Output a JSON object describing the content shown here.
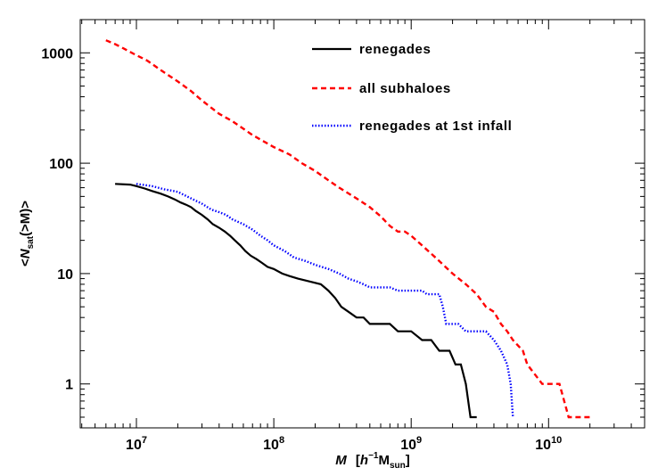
{
  "chart_data": {
    "type": "line",
    "title": "",
    "xlabel": {
      "symbol": "M",
      "unit_prefix": "[",
      "unit_h": "h",
      "unit_exp": "−1",
      "unit_M": "M",
      "unit_sub": "sun",
      "unit_suffix": "]"
    },
    "ylabel": {
      "open": "<",
      "symbol": "N",
      "sub": "sat",
      "arg": "(>M)",
      "close": ">"
    },
    "xscale": "log",
    "yscale": "log",
    "xlim": [
      3900000,
      50000000000
    ],
    "ylim": [
      0.4,
      2000
    ],
    "grid": false,
    "legend_position": "top-right",
    "x_ticks": [
      {
        "base": "10",
        "exp": "7",
        "value": 10000000
      },
      {
        "base": "10",
        "exp": "8",
        "value": 100000000
      },
      {
        "base": "10",
        "exp": "9",
        "value": 1000000000
      },
      {
        "base": "10",
        "exp": "10",
        "value": 10000000000
      }
    ],
    "y_ticks": [
      {
        "label": "1",
        "value": 1
      },
      {
        "label": "10",
        "value": 10
      },
      {
        "label": "100",
        "value": 100
      },
      {
        "label": "1000",
        "value": 1000
      }
    ],
    "series": [
      {
        "name": "renegades",
        "color": "#000000",
        "style": "solid",
        "points": [
          [
            7000000,
            65
          ],
          [
            9000000,
            64
          ],
          [
            10000000,
            62
          ],
          [
            11500000,
            59
          ],
          [
            13000000,
            56
          ],
          [
            15000000,
            53
          ],
          [
            17000000,
            50
          ],
          [
            19000000,
            47
          ],
          [
            21000000,
            44
          ],
          [
            23000000,
            42
          ],
          [
            25000000,
            40
          ],
          [
            27000000,
            37
          ],
          [
            30000000,
            34
          ],
          [
            33000000,
            31
          ],
          [
            36000000,
            28
          ],
          [
            40000000,
            26
          ],
          [
            44000000,
            24
          ],
          [
            48000000,
            22
          ],
          [
            52000000,
            20
          ],
          [
            57000000,
            18
          ],
          [
            62000000,
            16
          ],
          [
            68000000,
            14.5
          ],
          [
            75000000,
            13.5
          ],
          [
            82000000,
            12.5
          ],
          [
            90000000,
            11.5
          ],
          [
            100000000,
            11
          ],
          [
            115000000,
            10
          ],
          [
            130000000,
            9.5
          ],
          [
            150000000,
            9
          ],
          [
            180000000,
            8.5
          ],
          [
            220000000,
            8
          ],
          [
            250000000,
            7
          ],
          [
            280000000,
            6
          ],
          [
            310000000,
            5
          ],
          [
            350000000,
            4.5
          ],
          [
            400000000,
            4
          ],
          [
            450000000,
            4
          ],
          [
            500000000,
            3.5
          ],
          [
            600000000,
            3.5
          ],
          [
            700000000,
            3.5
          ],
          [
            800000000,
            3
          ],
          [
            1000000000,
            3
          ],
          [
            1200000000,
            2.5
          ],
          [
            1400000000,
            2.5
          ],
          [
            1600000000,
            2
          ],
          [
            1900000000,
            2
          ],
          [
            2100000000,
            1.5
          ],
          [
            2300000000,
            1.5
          ],
          [
            2500000000,
            1
          ],
          [
            2700000000,
            0.5
          ],
          [
            3000000000,
            0.5
          ]
        ]
      },
      {
        "name": "all subhaloes",
        "color": "#ff0000",
        "style": "dashed",
        "points": [
          [
            6000000,
            1300
          ],
          [
            7000000,
            1200
          ],
          [
            8000000,
            1100
          ],
          [
            10000000,
            950
          ],
          [
            12000000,
            850
          ],
          [
            15000000,
            700
          ],
          [
            20000000,
            550
          ],
          [
            25000000,
            450
          ],
          [
            30000000,
            370
          ],
          [
            40000000,
            280
          ],
          [
            50000000,
            240
          ],
          [
            70000000,
            180
          ],
          [
            100000000,
            140
          ],
          [
            130000000,
            120
          ],
          [
            160000000,
            100
          ],
          [
            200000000,
            85
          ],
          [
            250000000,
            70
          ],
          [
            300000000,
            60
          ],
          [
            400000000,
            48
          ],
          [
            500000000,
            40
          ],
          [
            600000000,
            33
          ],
          [
            700000000,
            27
          ],
          [
            800000000,
            24
          ],
          [
            900000000,
            24
          ],
          [
            1000000000,
            22
          ],
          [
            1200000000,
            18
          ],
          [
            1500000000,
            14
          ],
          [
            2000000000,
            10
          ],
          [
            2500000000,
            8
          ],
          [
            3000000000,
            6.5
          ],
          [
            3500000000,
            5
          ],
          [
            4000000000,
            4.5
          ],
          [
            4500000000,
            3.5
          ],
          [
            5000000000,
            3
          ],
          [
            5500000000,
            2.5
          ],
          [
            6500000000,
            2
          ],
          [
            7000000000,
            1.5
          ],
          [
            9000000000,
            1
          ],
          [
            12000000000,
            1
          ],
          [
            14000000000,
            0.5
          ],
          [
            20000000000,
            0.5
          ]
        ]
      },
      {
        "name": "renegades at 1st infall",
        "color": "#0000ff",
        "style": "dotted",
        "points": [
          [
            10000000,
            65
          ],
          [
            13000000,
            62
          ],
          [
            16000000,
            58
          ],
          [
            20000000,
            55
          ],
          [
            25000000,
            48
          ],
          [
            30000000,
            43
          ],
          [
            35000000,
            38
          ],
          [
            40000000,
            36
          ],
          [
            45000000,
            34
          ],
          [
            50000000,
            31
          ],
          [
            60000000,
            28
          ],
          [
            70000000,
            25
          ],
          [
            80000000,
            22
          ],
          [
            90000000,
            20
          ],
          [
            100000000,
            18
          ],
          [
            120000000,
            16
          ],
          [
            140000000,
            14
          ],
          [
            170000000,
            13
          ],
          [
            200000000,
            12
          ],
          [
            250000000,
            11
          ],
          [
            300000000,
            10
          ],
          [
            350000000,
            9
          ],
          [
            400000000,
            8.5
          ],
          [
            450000000,
            8
          ],
          [
            500000000,
            7.5
          ],
          [
            700000000,
            7.5
          ],
          [
            800000000,
            7
          ],
          [
            1200000000,
            7
          ],
          [
            1300000000,
            6.5
          ],
          [
            1600000000,
            6.5
          ],
          [
            1700000000,
            5
          ],
          [
            1800000000,
            3.5
          ],
          [
            2200000000,
            3.5
          ],
          [
            2500000000,
            3
          ],
          [
            3500000000,
            3
          ],
          [
            4000000000,
            2.5
          ],
          [
            4500000000,
            2
          ],
          [
            5000000000,
            1.5
          ],
          [
            5300000000,
            1
          ],
          [
            5500000000,
            0.5
          ]
        ]
      }
    ]
  }
}
